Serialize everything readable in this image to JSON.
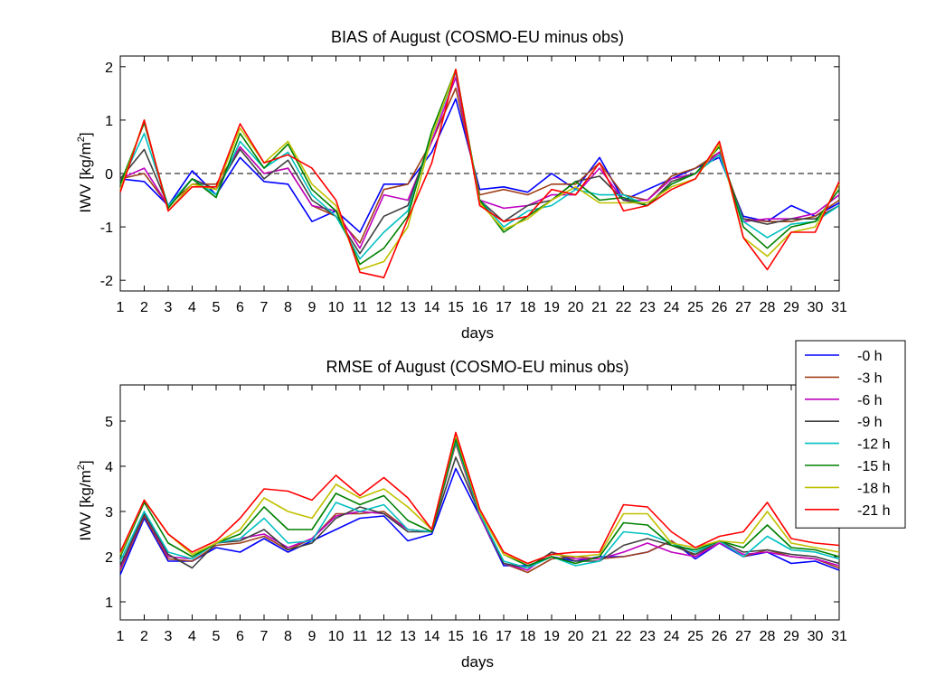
{
  "colors": {
    "-0 h": "#0000ff",
    "-3 h": "#a0401a",
    "-6 h": "#c000c0",
    "-9 h": "#404040",
    "-12 h": "#00c0c0",
    "-15 h": "#008000",
    "-18 h": "#c0c000",
    "-21 h": "#ff0000"
  },
  "legend": {
    "entries": [
      "-0 h",
      "-3 h",
      "-6 h",
      "-9 h",
      "-12 h",
      "-15 h",
      "-18 h",
      "-21 h"
    ],
    "placement": "right, between panels"
  },
  "chart_data": [
    {
      "type": "line",
      "title": "BIAS of August (COSMO-EU minus obs)",
      "xlabel": "days",
      "ylabel": "IWV [kg/m",
      "ylabel_sup": "2",
      "ylabel_end": "]",
      "xlim": [
        1,
        31
      ],
      "ylim": [
        -2.2,
        2.2
      ],
      "xticks": [
        1,
        2,
        3,
        4,
        5,
        6,
        7,
        8,
        9,
        10,
        11,
        12,
        13,
        14,
        15,
        16,
        17,
        18,
        19,
        20,
        21,
        22,
        23,
        24,
        25,
        26,
        27,
        28,
        29,
        30,
        31
      ],
      "yticks": [
        -2,
        -1,
        0,
        1,
        2
      ],
      "zero_line": true,
      "x": [
        1,
        2,
        3,
        4,
        5,
        6,
        7,
        8,
        9,
        10,
        11,
        12,
        13,
        14,
        15,
        16,
        17,
        18,
        19,
        20,
        21,
        22,
        23,
        24,
        25,
        26,
        27,
        28,
        29,
        30,
        31
      ],
      "series": [
        {
          "name": "-0 h",
          "values": [
            -0.1,
            -0.15,
            -0.6,
            0.05,
            -0.4,
            0.3,
            -0.15,
            -0.2,
            -0.9,
            -0.7,
            -1.1,
            -0.2,
            -0.2,
            0.4,
            1.4,
            -0.3,
            -0.25,
            -0.35,
            0.0,
            -0.3,
            0.3,
            -0.5,
            -0.3,
            -0.1,
            0.1,
            0.3,
            -0.8,
            -0.9,
            -0.6,
            -0.8,
            -0.55
          ]
        },
        {
          "name": "-3 h",
          "values": [
            -0.1,
            0.0,
            -0.6,
            -0.2,
            -0.2,
            0.5,
            0.0,
            0.1,
            -0.6,
            -0.8,
            -1.3,
            -0.3,
            -0.2,
            0.6,
            1.6,
            -0.4,
            -0.3,
            -0.4,
            -0.2,
            -0.2,
            0.2,
            -0.4,
            -0.5,
            -0.05,
            0.1,
            0.4,
            -0.85,
            -0.9,
            -0.9,
            -0.8,
            -0.5
          ]
        },
        {
          "name": "-6 h",
          "values": [
            -0.1,
            0.1,
            -0.6,
            -0.1,
            -0.3,
            0.5,
            0.0,
            0.1,
            -0.6,
            -0.7,
            -1.4,
            -0.4,
            -0.5,
            0.6,
            1.8,
            -0.5,
            -0.65,
            -0.6,
            -0.4,
            -0.4,
            0.1,
            -0.5,
            -0.5,
            -0.1,
            0.0,
            0.4,
            -0.9,
            -0.85,
            -0.85,
            -0.75,
            -0.4
          ]
        },
        {
          "name": "-9 h",
          "values": [
            -0.1,
            0.45,
            -0.6,
            -0.1,
            -0.3,
            0.45,
            -0.1,
            0.25,
            -0.5,
            -0.8,
            -1.5,
            -0.8,
            -0.6,
            0.7,
            1.9,
            -0.5,
            -0.9,
            -0.6,
            -0.5,
            -0.15,
            -0.05,
            -0.5,
            -0.6,
            -0.15,
            0.0,
            0.35,
            -0.85,
            -0.95,
            -0.85,
            -0.85,
            -0.6
          ]
        },
        {
          "name": "-12 h",
          "values": [
            -0.2,
            0.75,
            -0.6,
            -0.1,
            -0.4,
            0.6,
            0.1,
            0.4,
            -0.4,
            -0.8,
            -1.6,
            -1.1,
            -0.7,
            0.7,
            1.9,
            -0.5,
            -1.0,
            -0.7,
            -0.6,
            -0.3,
            -0.4,
            -0.4,
            -0.6,
            -0.2,
            0.0,
            0.35,
            -0.9,
            -1.2,
            -0.95,
            -0.9,
            -0.6
          ]
        },
        {
          "name": "-15 h",
          "values": [
            -0.2,
            0.95,
            -0.65,
            -0.1,
            -0.45,
            0.75,
            0.1,
            0.55,
            -0.3,
            -0.7,
            -1.7,
            -1.4,
            -0.8,
            0.8,
            1.95,
            -0.5,
            -1.1,
            -0.8,
            -0.5,
            -0.15,
            -0.5,
            -0.45,
            -0.6,
            -0.2,
            0.0,
            0.5,
            -1.0,
            -1.4,
            -1.0,
            -0.9,
            -0.3
          ]
        },
        {
          "name": "-18 h",
          "values": [
            -0.3,
            1.0,
            -0.7,
            -0.2,
            -0.3,
            0.85,
            0.2,
            0.6,
            -0.2,
            -0.6,
            -1.8,
            -1.65,
            -1.0,
            0.7,
            1.95,
            -0.55,
            -1.05,
            -0.85,
            -0.5,
            -0.25,
            -0.55,
            -0.55,
            -0.55,
            -0.25,
            -0.1,
            0.55,
            -1.2,
            -1.55,
            -1.1,
            -1.0,
            -0.2
          ]
        },
        {
          "name": "-21 h",
          "values": [
            -0.35,
            1.0,
            -0.7,
            -0.25,
            -0.25,
            0.93,
            0.2,
            0.35,
            0.1,
            -0.5,
            -1.85,
            -1.95,
            -0.85,
            0.2,
            1.95,
            -0.6,
            -0.9,
            -0.8,
            -0.3,
            -0.4,
            0.2,
            -0.7,
            -0.6,
            -0.3,
            -0.1,
            0.6,
            -1.2,
            -1.8,
            -1.1,
            -1.1,
            -0.15
          ]
        }
      ]
    },
    {
      "type": "line",
      "title": "RMSE of August (COSMO-EU minus obs)",
      "xlabel": "days",
      "ylabel": "IWV [kg/m",
      "ylabel_sup": "2",
      "ylabel_end": "]",
      "xlim": [
        1,
        31
      ],
      "ylim": [
        0.6,
        5.8
      ],
      "xticks": [
        1,
        2,
        3,
        4,
        5,
        6,
        7,
        8,
        9,
        10,
        11,
        12,
        13,
        14,
        15,
        16,
        17,
        18,
        19,
        20,
        21,
        22,
        23,
        24,
        25,
        26,
        27,
        28,
        29,
        30,
        31
      ],
      "yticks": [
        1,
        2,
        3,
        4,
        5
      ],
      "zero_line": false,
      "x": [
        1,
        2,
        3,
        4,
        5,
        6,
        7,
        8,
        9,
        10,
        11,
        12,
        13,
        14,
        15,
        16,
        17,
        18,
        19,
        20,
        21,
        22,
        23,
        24,
        25,
        26,
        27,
        28,
        29,
        30,
        31
      ],
      "series": [
        {
          "name": "-0 h",
          "values": [
            1.6,
            2.85,
            1.9,
            1.9,
            2.2,
            2.1,
            2.4,
            2.1,
            2.35,
            2.6,
            2.85,
            2.9,
            2.35,
            2.5,
            3.95,
            2.9,
            1.8,
            1.8,
            2.0,
            1.9,
            2.0,
            2.0,
            2.1,
            2.35,
            1.95,
            2.3,
            2.0,
            2.1,
            1.85,
            1.9,
            1.7
          ]
        },
        {
          "name": "-3 h",
          "values": [
            1.7,
            2.9,
            1.95,
            1.9,
            2.25,
            2.3,
            2.45,
            2.15,
            2.4,
            2.95,
            2.95,
            3.0,
            2.6,
            2.55,
            4.5,
            2.9,
            1.85,
            1.65,
            1.95,
            2.0,
            1.95,
            2.0,
            2.1,
            2.35,
            2.0,
            2.35,
            2.0,
            2.15,
            2.0,
            1.95,
            1.75
          ]
        },
        {
          "name": "-6 h",
          "values": [
            1.75,
            2.95,
            2.0,
            1.95,
            2.3,
            2.4,
            2.5,
            2.2,
            2.4,
            2.9,
            3.0,
            2.95,
            2.6,
            2.55,
            4.55,
            2.9,
            1.85,
            1.7,
            2.1,
            1.95,
            1.95,
            2.1,
            2.3,
            2.1,
            2.0,
            2.3,
            2.05,
            2.1,
            2.0,
            1.95,
            1.8
          ]
        },
        {
          "name": "-9 h",
          "values": [
            1.8,
            2.95,
            2.05,
            1.75,
            2.3,
            2.35,
            2.6,
            2.15,
            2.3,
            2.85,
            3.1,
            2.95,
            2.55,
            2.55,
            4.2,
            2.95,
            1.85,
            1.75,
            2.1,
            1.9,
            1.9,
            2.25,
            2.4,
            2.25,
            2.05,
            2.35,
            2.1,
            2.15,
            2.05,
            2.0,
            1.85
          ]
        },
        {
          "name": "-12 h",
          "values": [
            1.9,
            3.0,
            2.1,
            1.95,
            2.3,
            2.4,
            2.85,
            2.3,
            2.35,
            3.2,
            3.0,
            3.15,
            2.6,
            2.55,
            4.55,
            2.95,
            1.9,
            1.75,
            2.0,
            1.8,
            1.9,
            2.55,
            2.5,
            2.3,
            2.1,
            2.35,
            2.0,
            2.45,
            2.15,
            2.1,
            1.95
          ]
        },
        {
          "name": "-15 h",
          "values": [
            2.0,
            3.2,
            2.3,
            2.0,
            2.3,
            2.5,
            3.1,
            2.6,
            2.6,
            3.4,
            3.15,
            3.35,
            2.8,
            2.55,
            4.6,
            3.0,
            2.05,
            1.8,
            2.0,
            1.85,
            2.0,
            2.75,
            2.7,
            2.25,
            2.15,
            2.35,
            2.2,
            2.7,
            2.2,
            2.15,
            2.0
          ]
        },
        {
          "name": "-18 h",
          "values": [
            2.05,
            3.25,
            2.5,
            2.05,
            2.3,
            2.6,
            3.3,
            3.0,
            2.85,
            3.6,
            3.3,
            3.5,
            3.1,
            2.6,
            4.7,
            3.0,
            2.05,
            1.85,
            2.05,
            2.0,
            2.05,
            2.95,
            2.95,
            2.3,
            2.2,
            2.35,
            2.3,
            3.0,
            2.3,
            2.2,
            2.1
          ]
        },
        {
          "name": "-21 h",
          "values": [
            2.1,
            3.25,
            2.5,
            2.1,
            2.35,
            2.85,
            3.5,
            3.45,
            3.25,
            3.8,
            3.35,
            3.75,
            3.3,
            2.6,
            4.75,
            3.05,
            2.1,
            1.85,
            2.05,
            2.1,
            2.1,
            3.15,
            3.1,
            2.55,
            2.2,
            2.45,
            2.55,
            3.2,
            2.4,
            2.3,
            2.25
          ]
        }
      ]
    }
  ]
}
